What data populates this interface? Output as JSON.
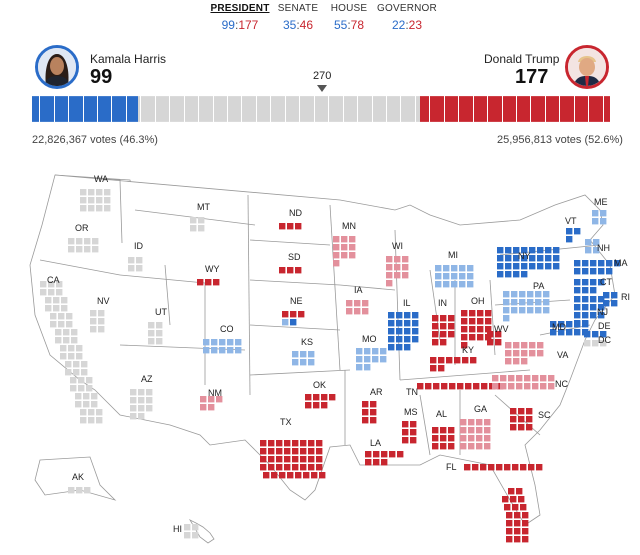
{
  "tabs": [
    {
      "label": "PRESIDENT",
      "dem": "99",
      "rep": "177",
      "active": true
    },
    {
      "label": "SENATE",
      "dem": "35",
      "rep": "46",
      "active": false
    },
    {
      "label": "HOUSE",
      "dem": "55",
      "rep": "78",
      "active": false
    },
    {
      "label": "GOVERNOR",
      "dem": "22",
      "rep": "23",
      "active": false
    }
  ],
  "colors": {
    "dem": "#2a6cc8",
    "dem_lean": "#8fb6e6",
    "rep": "#c8262f",
    "rep_lean": "#e3909c",
    "pending": "#d6d6d6",
    "border": "#9a9a9a"
  },
  "harris": {
    "name": "Kamala Harris",
    "electoral_votes": "99",
    "votes_text": "22,826,367 votes (46.3%)",
    "avatar_icon": "harris-portrait-icon"
  },
  "trump": {
    "name": "Donald Trump",
    "electoral_votes": "177",
    "votes_text": "25,956,813 votes (52.6%)",
    "avatar_icon": "trump-portrait-icon"
  },
  "threshold": {
    "label": "270",
    "value": 270
  },
  "total_electoral_votes": 538,
  "states": [
    {
      "abbr": "WA",
      "ev": 12,
      "status": "pending"
    },
    {
      "abbr": "OR",
      "ev": 8,
      "status": "pending"
    },
    {
      "abbr": "CA",
      "ev": 54,
      "status": "pending"
    },
    {
      "abbr": "NV",
      "ev": 6,
      "status": "pending"
    },
    {
      "abbr": "ID",
      "ev": 4,
      "status": "pending"
    },
    {
      "abbr": "MT",
      "ev": 4,
      "status": "pending"
    },
    {
      "abbr": "WY",
      "ev": 3,
      "status": "rep"
    },
    {
      "abbr": "UT",
      "ev": 6,
      "status": "pending"
    },
    {
      "abbr": "AZ",
      "ev": 11,
      "status": "pending"
    },
    {
      "abbr": "CO",
      "ev": 10,
      "status": "dem_lean"
    },
    {
      "abbr": "NM",
      "ev": 5,
      "status": "rep_lean"
    },
    {
      "abbr": "ND",
      "ev": 3,
      "status": "rep"
    },
    {
      "abbr": "SD",
      "ev": 3,
      "status": "rep"
    },
    {
      "abbr": "NE",
      "ev": 5,
      "status": "mixed"
    },
    {
      "abbr": "KS",
      "ev": 6,
      "status": "dem_lean"
    },
    {
      "abbr": "OK",
      "ev": 7,
      "status": "rep"
    },
    {
      "abbr": "TX",
      "ev": 40,
      "status": "rep"
    },
    {
      "abbr": "MN",
      "ev": 10,
      "status": "rep_lean"
    },
    {
      "abbr": "IA",
      "ev": 6,
      "status": "rep_lean"
    },
    {
      "abbr": "MO",
      "ev": 10,
      "status": "dem_lean"
    },
    {
      "abbr": "AR",
      "ev": 6,
      "status": "rep"
    },
    {
      "abbr": "LA",
      "ev": 8,
      "status": "rep"
    },
    {
      "abbr": "WI",
      "ev": 10,
      "status": "rep_lean"
    },
    {
      "abbr": "IL",
      "ev": 19,
      "status": "dem"
    },
    {
      "abbr": "MI",
      "ev": 15,
      "status": "dem_lean"
    },
    {
      "abbr": "IN",
      "ev": 11,
      "status": "rep"
    },
    {
      "abbr": "OH",
      "ev": 17,
      "status": "rep"
    },
    {
      "abbr": "KY",
      "ev": 8,
      "status": "rep"
    },
    {
      "abbr": "TN",
      "ev": 11,
      "status": "rep"
    },
    {
      "abbr": "MS",
      "ev": 6,
      "status": "rep"
    },
    {
      "abbr": "AL",
      "ev": 9,
      "status": "rep"
    },
    {
      "abbr": "GA",
      "ev": 16,
      "status": "rep_lean"
    },
    {
      "abbr": "FL",
      "ev": 30,
      "status": "rep"
    },
    {
      "abbr": "SC",
      "ev": 9,
      "status": "rep"
    },
    {
      "abbr": "NC",
      "ev": 16,
      "status": "rep_lean"
    },
    {
      "abbr": "VA",
      "ev": 13,
      "status": "rep_lean"
    },
    {
      "abbr": "WV",
      "ev": 4,
      "status": "rep"
    },
    {
      "abbr": "PA",
      "ev": 19,
      "status": "dem_lean"
    },
    {
      "abbr": "NY",
      "ev": 28,
      "status": "dem"
    },
    {
      "abbr": "VT",
      "ev": 3,
      "status": "dem"
    },
    {
      "abbr": "NH",
      "ev": 4,
      "status": "dem_lean"
    },
    {
      "abbr": "ME",
      "ev": 4,
      "status": "dem_lean"
    },
    {
      "abbr": "MA",
      "ev": 11,
      "status": "dem"
    },
    {
      "abbr": "CT",
      "ev": 7,
      "status": "dem"
    },
    {
      "abbr": "RI",
      "ev": 4,
      "status": "dem"
    },
    {
      "abbr": "NJ",
      "ev": 14,
      "status": "dem"
    },
    {
      "abbr": "DE",
      "ev": 3,
      "status": "dem"
    },
    {
      "abbr": "MD",
      "ev": 10,
      "status": "dem"
    },
    {
      "abbr": "DC",
      "ev": 3,
      "status": "pending"
    },
    {
      "abbr": "AK",
      "ev": 3,
      "status": "pending"
    },
    {
      "abbr": "HI",
      "ev": 4,
      "status": "pending"
    }
  ]
}
